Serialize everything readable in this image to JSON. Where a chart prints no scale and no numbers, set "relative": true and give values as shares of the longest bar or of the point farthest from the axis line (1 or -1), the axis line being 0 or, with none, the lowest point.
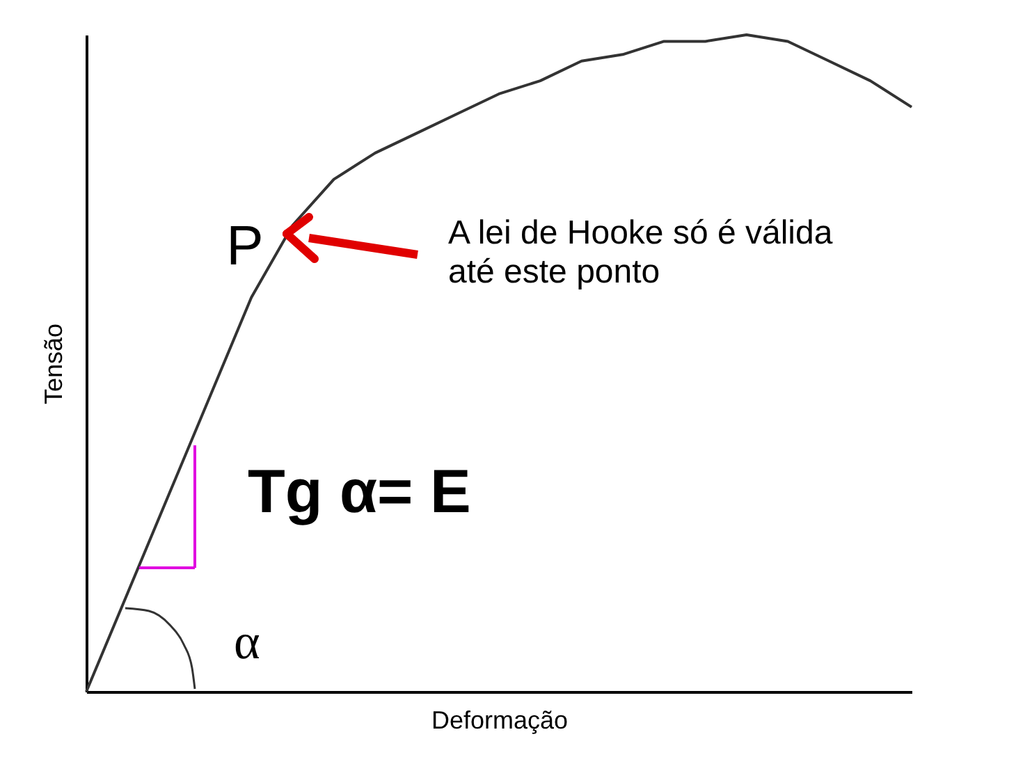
{
  "chart_data": {
    "type": "line",
    "relative": true,
    "xlabel": "Deformação",
    "ylabel": "Tensão",
    "color": "#333333",
    "categories": [
      null,
      null,
      null,
      null,
      null,
      null,
      null,
      null,
      null,
      null,
      null,
      null,
      null,
      null,
      null,
      null,
      null,
      null,
      null,
      null,
      null
    ],
    "values": [
      0,
      0.15,
      0.3,
      0.45,
      0.6,
      0.71,
      0.78,
      0.82,
      0.85,
      0.88,
      0.91,
      0.93,
      0.96,
      0.97,
      0.99,
      0.99,
      1,
      0.99,
      0.96,
      0.93,
      0.89
    ],
    "annotations": [
      "P",
      "A lei de Hooke só é válida até este ponto",
      "Tg α= E",
      "α"
    ]
  }
}
